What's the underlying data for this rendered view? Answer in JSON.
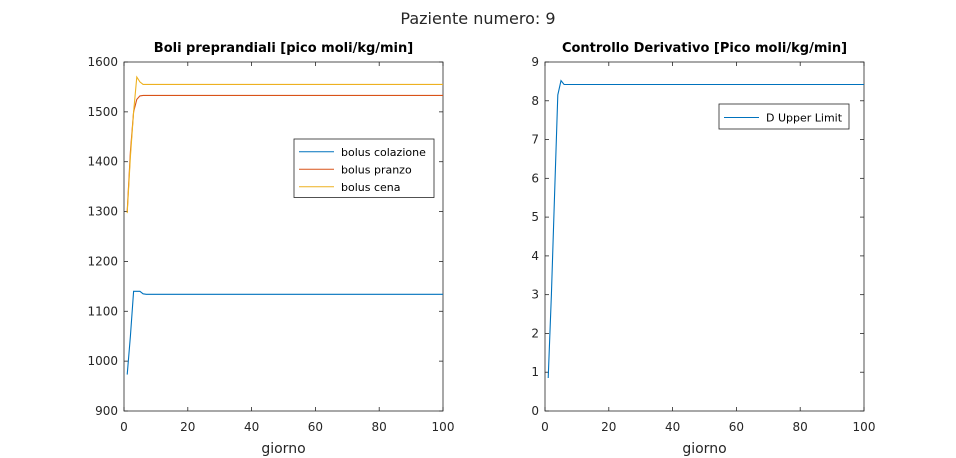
{
  "figure_title": "Paziente numero: 9",
  "colors": {
    "blue": "#0072BD",
    "orange": "#D95319",
    "yellow": "#EDB120"
  },
  "chart_data": [
    {
      "type": "line",
      "title": "Boli preprandiali [pico moli/kg/min]",
      "xlabel": "giorno",
      "ylabel": "",
      "xlim": [
        0,
        100
      ],
      "ylim": [
        900,
        1600
      ],
      "xticks": [
        0,
        20,
        40,
        60,
        80,
        100
      ],
      "yticks": [
        900,
        1000,
        1100,
        1200,
        1300,
        1400,
        1500,
        1600
      ],
      "grid": false,
      "legend_position": "right",
      "series": [
        {
          "name": "bolus colazione",
          "color": "#0072BD",
          "x": [
            1,
            2,
            3,
            4,
            5,
            6,
            7,
            100
          ],
          "y": [
            973,
            1050,
            1140,
            1140,
            1140,
            1135,
            1134,
            1134
          ]
        },
        {
          "name": "bolus pranzo",
          "color": "#D95319",
          "x": [
            1,
            2,
            3,
            4,
            5,
            6,
            7,
            100
          ],
          "y": [
            1300,
            1420,
            1500,
            1525,
            1532,
            1533,
            1533,
            1533
          ]
        },
        {
          "name": "bolus cena",
          "color": "#EDB120",
          "x": [
            1,
            2,
            3,
            4,
            5,
            6,
            7,
            100
          ],
          "y": [
            1297,
            1410,
            1500,
            1570,
            1560,
            1555,
            1555,
            1555
          ]
        }
      ]
    },
    {
      "type": "line",
      "title": "Controllo Derivativo [Pico moli/kg/min]",
      "xlabel": "giorno",
      "ylabel": "",
      "xlim": [
        0,
        100
      ],
      "ylim": [
        0,
        9
      ],
      "xticks": [
        0,
        20,
        40,
        60,
        80,
        100
      ],
      "yticks": [
        0,
        1,
        2,
        3,
        4,
        5,
        6,
        7,
        8,
        9
      ],
      "grid": false,
      "legend_position": "top-right",
      "series": [
        {
          "name": "D Upper Limit",
          "color": "#0072BD",
          "x": [
            1,
            2,
            3,
            4,
            5,
            6,
            100
          ],
          "y": [
            0.85,
            3.0,
            5.6,
            8.15,
            8.52,
            8.42,
            8.42
          ]
        }
      ]
    }
  ]
}
